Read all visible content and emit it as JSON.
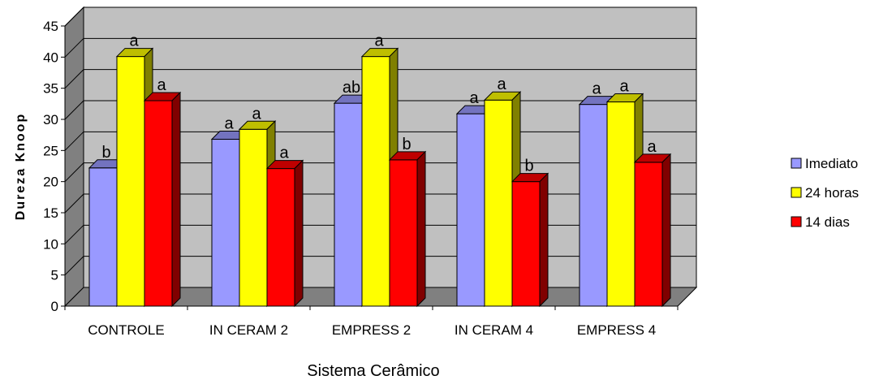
{
  "chart_data": {
    "type": "bar",
    "categories": [
      "CONTROLE",
      "IN CERAM 2",
      "EMPRESS 2",
      "IN CERAM 4",
      "EMPRESS 4"
    ],
    "series": [
      {
        "name": "Imediato",
        "color": "#9999FF",
        "values": [
          22.2,
          26.8,
          32.6,
          30.9,
          32.4
        ],
        "labels": [
          "b",
          "a",
          "ab",
          "a",
          "a"
        ]
      },
      {
        "name": "24 horas",
        "color": "#FFFF00",
        "values": [
          40.1,
          28.4,
          40.1,
          33.1,
          32.8
        ],
        "labels": [
          "a",
          "a",
          "a",
          "a",
          "a"
        ]
      },
      {
        "name": "14 dias",
        "color": "#FF0000",
        "values": [
          33.0,
          22.1,
          23.5,
          20.0,
          23.1
        ],
        "labels": [
          "a",
          "a",
          "b",
          "b",
          "a"
        ]
      }
    ],
    "xlabel": "Sistema Cerâmico",
    "ylabel": "Dureza Knoop",
    "ylim": [
      0,
      45
    ],
    "yticks": [
      0,
      5,
      10,
      15,
      20,
      25,
      30,
      35,
      40,
      45
    ],
    "grid": true,
    "legend_position": "right"
  }
}
